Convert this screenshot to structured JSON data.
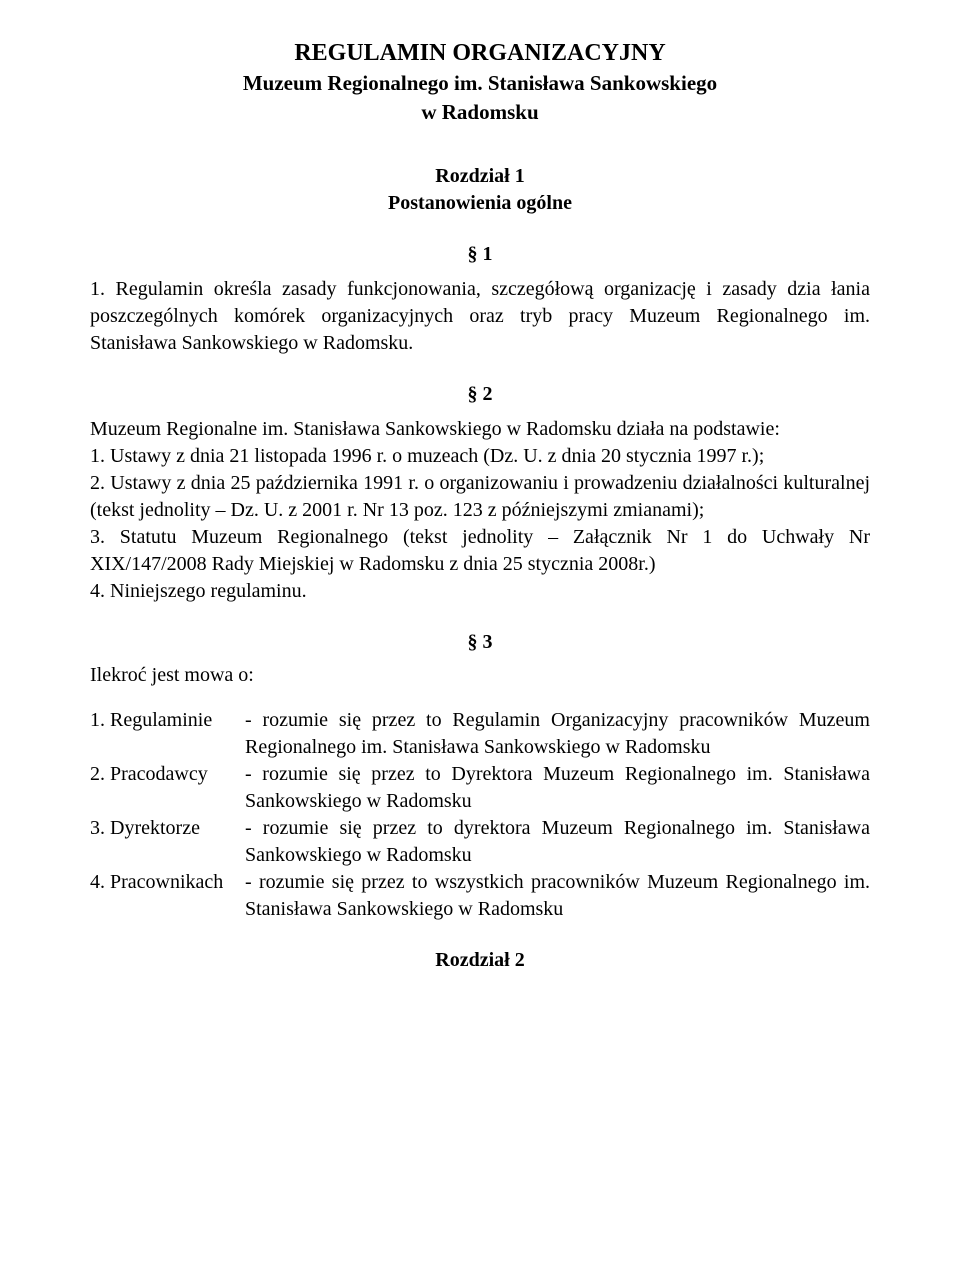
{
  "title_main": "REGULAMIN ORGANIZACYJNY",
  "title_sub": "Muzeum Regionalnego im. Stanisława Sankowskiego",
  "title_sub2": "w Radomsku",
  "chapter1_label": "Rozdział 1",
  "chapter1_name": "Postanowienia ogólne",
  "s1_label": "§ 1",
  "s1_para": "1. Regulamin określa zasady funkcjonowania, szczegółową organizację i zasady dzia łania poszczególnych komórek organizacyjnych oraz tryb pracy Muzeum Regionalnego im. Stanisława Sankowskiego w Radomsku.",
  "s2_label": "§ 2",
  "s2_lead": "Muzeum Regionalne im. Stanisława Sankowskiego w Radomsku działa na podstawie:",
  "s2_items": [
    "1. Ustawy z dnia 21 listopada 1996 r. o muzeach (Dz. U. z dnia 20 stycznia 1997 r.);",
    "2. Ustawy z dnia 25 października 1991 r. o organizowaniu i prowadzeniu działalności kulturalnej (tekst jednolity – Dz. U. z 2001 r. Nr 13 poz. 123 z późniejszymi zmianami);",
    "3. Statutu Muzeum Regionalnego (tekst jednolity – Załącznik Nr 1 do Uchwały Nr XIX/147/2008 Rady Miejskiej w Radomsku z dnia 25 stycznia 2008r.)",
    "4. Niniejszego regulaminu."
  ],
  "s3_label": "§ 3",
  "s3_lead": "Ilekroć jest mowa o:",
  "s3_defs": [
    {
      "term": "1. Regulaminie",
      "val": "- rozumie się przez to Regulamin Organizacyjny pracowników Muzeum Regionalnego im. Stanisława Sankowskiego w Radomsku"
    },
    {
      "term": "2. Pracodawcy",
      "val": "- rozumie się przez to Dyrektora Muzeum Regionalnego im. Stanisława Sankowskiego w Radomsku"
    },
    {
      "term": "3. Dyrektorze",
      "val": "- rozumie się przez to dyrektora Muzeum Regionalnego im. Stanisława Sankowskiego w Radomsku"
    },
    {
      "term": "4. Pracownikach",
      "val": "- rozumie się przez to wszystkich pracowników Muzeum Regionalnego im. Stanisława Sankowskiego w Radomsku"
    }
  ],
  "chapter2_label": "Rozdział 2"
}
